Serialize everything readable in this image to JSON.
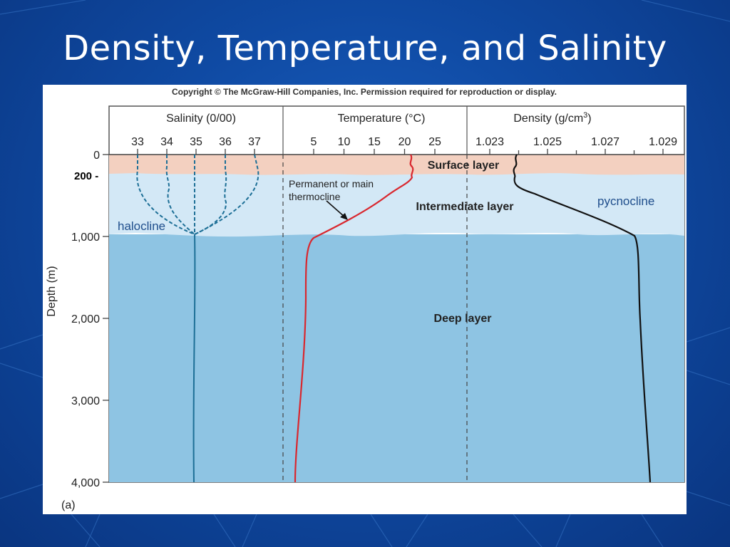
{
  "slide": {
    "title": "Density, Temperature, and Salinity"
  },
  "figure": {
    "copyright": "Copyright © The McGraw-Hill Companies, Inc. Permission required for reproduction or display.",
    "panel_label": "(a)",
    "depth_axis": {
      "label": "Depth (m)",
      "ticks": [
        {
          "value": 0,
          "label": "0"
        },
        {
          "value": 1000,
          "label": "1,000"
        },
        {
          "value": 2000,
          "label": "2,000"
        },
        {
          "value": 3000,
          "label": "3,000"
        },
        {
          "value": 4000,
          "label": "4,000"
        }
      ]
    },
    "panels": {
      "salinity": {
        "title": "Salinity (0/00)",
        "ticks": [
          "33",
          "34",
          "35",
          "36",
          "37"
        ],
        "tick_values": [
          33,
          34,
          35,
          36,
          37
        ]
      },
      "temperature": {
        "title": "Temperature (°C)",
        "ticks": [
          "5",
          "10",
          "15",
          "20",
          "25"
        ],
        "tick_values": [
          5,
          10,
          15,
          20,
          25
        ]
      },
      "density": {
        "title_main": "Density (g/cm",
        "title_sup": "3",
        "title_end": ")",
        "ticks": [
          "1.023",
          "1.025",
          "1.027",
          "1.029"
        ],
        "tick_values": [
          1.023,
          1.025,
          1.027,
          1.029
        ]
      }
    },
    "layers": {
      "surface": "Surface layer",
      "intermediate": "Intermediate layer",
      "deep": "Deep layer"
    },
    "annotations": {
      "thermocline_line1": "Permanent or main",
      "thermocline_line2": "thermocline"
    },
    "overlays": {
      "depth_200": "200 -",
      "halocline": "halocline",
      "pycnocline": "pycnocline"
    },
    "colors": {
      "surface_layer": "#f3d0c0",
      "intermediate_layer": "#d3e8f6",
      "deep_layer": "#8ec4e3",
      "salinity_curve": "#1d6f96",
      "temperature_curve": "#d9272e",
      "density_curve": "#111111"
    }
  }
}
